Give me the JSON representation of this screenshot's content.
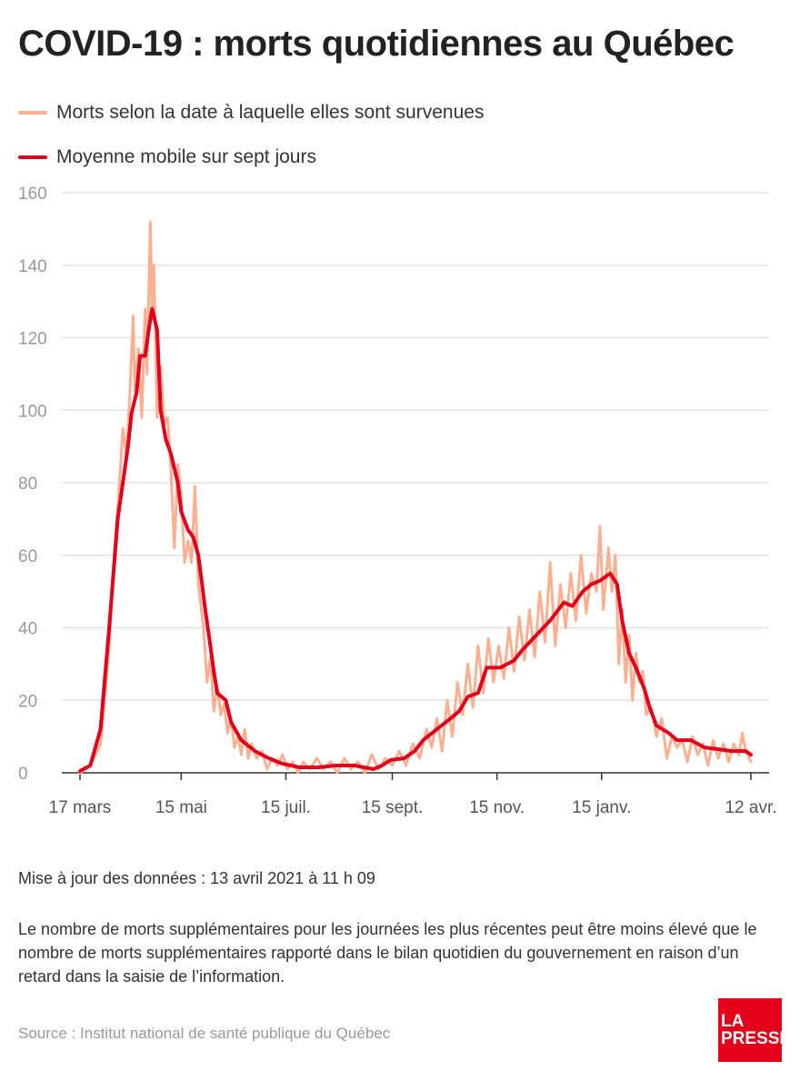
{
  "title": "COVID-19 : morts quotidiennes au Québec",
  "legend": [
    {
      "label": "Morts selon la date à laquelle elles sont survenues",
      "color": "#fcb092"
    },
    {
      "label": "Moyenne mobile sur sept jours",
      "color": "#e2001a"
    }
  ],
  "update_note": "Mise à jour des données : 13 avril 2021 à 11 h 09",
  "disclaimer": "Le nombre de morts supplémentaires pour les journées les plus récentes peut être moins élevé que le nombre de morts supplémentaires rapporté dans le bilan quotidien du gouvernement en raison d’un retard dans la saisie de l’information.",
  "source": "Source : Institut national de santé publique du Québec",
  "logo_text": [
    "LA",
    "PRESSE"
  ],
  "chart_data": {
    "type": "line",
    "title": "COVID-19 : morts quotidiennes au Québec",
    "xlabel": "",
    "ylabel": "",
    "x_unit": "days since 17 mars 2020",
    "xlim": [
      0,
      391
    ],
    "ylim": [
      0,
      160
    ],
    "yticks": [
      0,
      20,
      40,
      60,
      80,
      100,
      120,
      140,
      160
    ],
    "xticks": [
      {
        "day": 0,
        "label": "17 mars"
      },
      {
        "day": 59,
        "label": "15 mai"
      },
      {
        "day": 120,
        "label": "15 juil."
      },
      {
        "day": 182,
        "label": "15 sept."
      },
      {
        "day": 243,
        "label": "15 nov."
      },
      {
        "day": 304,
        "label": "15 janv."
      },
      {
        "day": 391,
        "label": "12 avr."
      }
    ],
    "grid": true,
    "legend_position": "top-left",
    "series": [
      {
        "name": "Morts selon la date à laquelle elles sont survenues",
        "color": "#fcb092",
        "points": [
          [
            0,
            0
          ],
          [
            3,
            1
          ],
          [
            6,
            2
          ],
          [
            9,
            5
          ],
          [
            12,
            8
          ],
          [
            14,
            18
          ],
          [
            17,
            35
          ],
          [
            20,
            60
          ],
          [
            23,
            80
          ],
          [
            25,
            95
          ],
          [
            27,
            87
          ],
          [
            29,
            104
          ],
          [
            31,
            126
          ],
          [
            32,
            105
          ],
          [
            34,
            117
          ],
          [
            36,
            98
          ],
          [
            38,
            128
          ],
          [
            39,
            110
          ],
          [
            41,
            152
          ],
          [
            42,
            125
          ],
          [
            43,
            140
          ],
          [
            45,
            98
          ],
          [
            47,
            112
          ],
          [
            49,
            96
          ],
          [
            51,
            98
          ],
          [
            53,
            84
          ],
          [
            55,
            62
          ],
          [
            57,
            85
          ],
          [
            59,
            76
          ],
          [
            61,
            58
          ],
          [
            63,
            64
          ],
          [
            65,
            58
          ],
          [
            67,
            79
          ],
          [
            69,
            52
          ],
          [
            72,
            40
          ],
          [
            74,
            25
          ],
          [
            76,
            32
          ],
          [
            78,
            17
          ],
          [
            80,
            24
          ],
          [
            82,
            16
          ],
          [
            84,
            19
          ],
          [
            86,
            11
          ],
          [
            88,
            15
          ],
          [
            90,
            7
          ],
          [
            92,
            10
          ],
          [
            94,
            5
          ],
          [
            96,
            12
          ],
          [
            98,
            4
          ],
          [
            100,
            8
          ],
          [
            103,
            4
          ],
          [
            106,
            6
          ],
          [
            109,
            1
          ],
          [
            112,
            4
          ],
          [
            115,
            2
          ],
          [
            118,
            5
          ],
          [
            121,
            1
          ],
          [
            124,
            3
          ],
          [
            127,
            0
          ],
          [
            130,
            3
          ],
          [
            134,
            1
          ],
          [
            138,
            4
          ],
          [
            142,
            1
          ],
          [
            146,
            3
          ],
          [
            150,
            0
          ],
          [
            154,
            4
          ],
          [
            158,
            1
          ],
          [
            162,
            3
          ],
          [
            166,
            0
          ],
          [
            170,
            5
          ],
          [
            174,
            1
          ],
          [
            178,
            4
          ],
          [
            182,
            2
          ],
          [
            186,
            6
          ],
          [
            190,
            2
          ],
          [
            194,
            8
          ],
          [
            198,
            4
          ],
          [
            202,
            12
          ],
          [
            205,
            7
          ],
          [
            208,
            15
          ],
          [
            211,
            6
          ],
          [
            214,
            20
          ],
          [
            217,
            10
          ],
          [
            220,
            25
          ],
          [
            223,
            16
          ],
          [
            226,
            30
          ],
          [
            229,
            18
          ],
          [
            232,
            35
          ],
          [
            235,
            22
          ],
          [
            238,
            37
          ],
          [
            241,
            25
          ],
          [
            244,
            35
          ],
          [
            247,
            26
          ],
          [
            250,
            40
          ],
          [
            253,
            28
          ],
          [
            256,
            43
          ],
          [
            259,
            31
          ],
          [
            262,
            45
          ],
          [
            265,
            32
          ],
          [
            268,
            50
          ],
          [
            271,
            36
          ],
          [
            274,
            58
          ],
          [
            277,
            35
          ],
          [
            280,
            52
          ],
          [
            283,
            40
          ],
          [
            286,
            55
          ],
          [
            289,
            42
          ],
          [
            292,
            60
          ],
          [
            295,
            44
          ],
          [
            298,
            55
          ],
          [
            301,
            50
          ],
          [
            303,
            68
          ],
          [
            305,
            45
          ],
          [
            308,
            62
          ],
          [
            310,
            50
          ],
          [
            312,
            60
          ],
          [
            314,
            30
          ],
          [
            316,
            45
          ],
          [
            318,
            25
          ],
          [
            320,
            38
          ],
          [
            322,
            20
          ],
          [
            324,
            33
          ],
          [
            326,
            25
          ],
          [
            328,
            28
          ],
          [
            330,
            16
          ],
          [
            333,
            18
          ],
          [
            336,
            10
          ],
          [
            339,
            15
          ],
          [
            342,
            4
          ],
          [
            345,
            10
          ],
          [
            348,
            7
          ],
          [
            351,
            9
          ],
          [
            354,
            3
          ],
          [
            357,
            10
          ],
          [
            360,
            5
          ],
          [
            363,
            8
          ],
          [
            366,
            2
          ],
          [
            369,
            9
          ],
          [
            372,
            4
          ],
          [
            375,
            8
          ],
          [
            378,
            3
          ],
          [
            381,
            8
          ],
          [
            384,
            5
          ],
          [
            386,
            11
          ],
          [
            388,
            6
          ],
          [
            391,
            3
          ]
        ]
      },
      {
        "name": "Moyenne mobile sur sept jours",
        "color": "#e2001a",
        "points": [
          [
            0,
            0.5
          ],
          [
            6,
            2
          ],
          [
            12,
            12
          ],
          [
            17,
            40
          ],
          [
            22,
            70
          ],
          [
            28,
            90
          ],
          [
            30,
            99
          ],
          [
            33,
            105
          ],
          [
            35,
            115
          ],
          [
            38,
            115
          ],
          [
            40,
            122
          ],
          [
            42,
            128
          ],
          [
            43,
            126
          ],
          [
            45,
            122
          ],
          [
            47,
            100
          ],
          [
            50,
            92
          ],
          [
            53,
            88
          ],
          [
            57,
            80
          ],
          [
            59,
            72
          ],
          [
            63,
            67
          ],
          [
            66,
            65
          ],
          [
            69,
            60
          ],
          [
            73,
            45
          ],
          [
            76,
            35
          ],
          [
            78,
            28
          ],
          [
            80,
            22
          ],
          [
            85,
            20
          ],
          [
            88,
            14
          ],
          [
            94,
            9
          ],
          [
            102,
            6
          ],
          [
            110,
            4
          ],
          [
            118,
            2.5
          ],
          [
            128,
            1.5
          ],
          [
            139,
            1.5
          ],
          [
            149,
            2
          ],
          [
            160,
            2
          ],
          [
            171,
            1
          ],
          [
            176,
            2
          ],
          [
            181,
            3.5
          ],
          [
            189,
            4
          ],
          [
            195,
            6
          ],
          [
            200,
            9
          ],
          [
            208,
            12
          ],
          [
            216,
            15
          ],
          [
            221,
            17
          ],
          [
            226,
            21
          ],
          [
            232,
            22
          ],
          [
            237,
            29
          ],
          [
            245,
            29
          ],
          [
            253,
            31
          ],
          [
            258,
            34
          ],
          [
            266,
            38
          ],
          [
            274,
            42
          ],
          [
            282,
            47
          ],
          [
            287,
            46
          ],
          [
            293,
            50
          ],
          [
            298,
            52
          ],
          [
            303,
            53
          ],
          [
            309,
            55
          ],
          [
            313,
            52
          ],
          [
            316,
            42
          ],
          [
            320,
            33
          ],
          [
            324,
            29
          ],
          [
            329,
            23
          ],
          [
            332,
            18
          ],
          [
            336,
            13
          ],
          [
            343,
            11
          ],
          [
            348,
            9
          ],
          [
            356,
            9
          ],
          [
            364,
            7
          ],
          [
            372,
            6.5
          ],
          [
            380,
            6
          ],
          [
            388,
            6
          ],
          [
            391,
            5
          ]
        ]
      }
    ]
  }
}
